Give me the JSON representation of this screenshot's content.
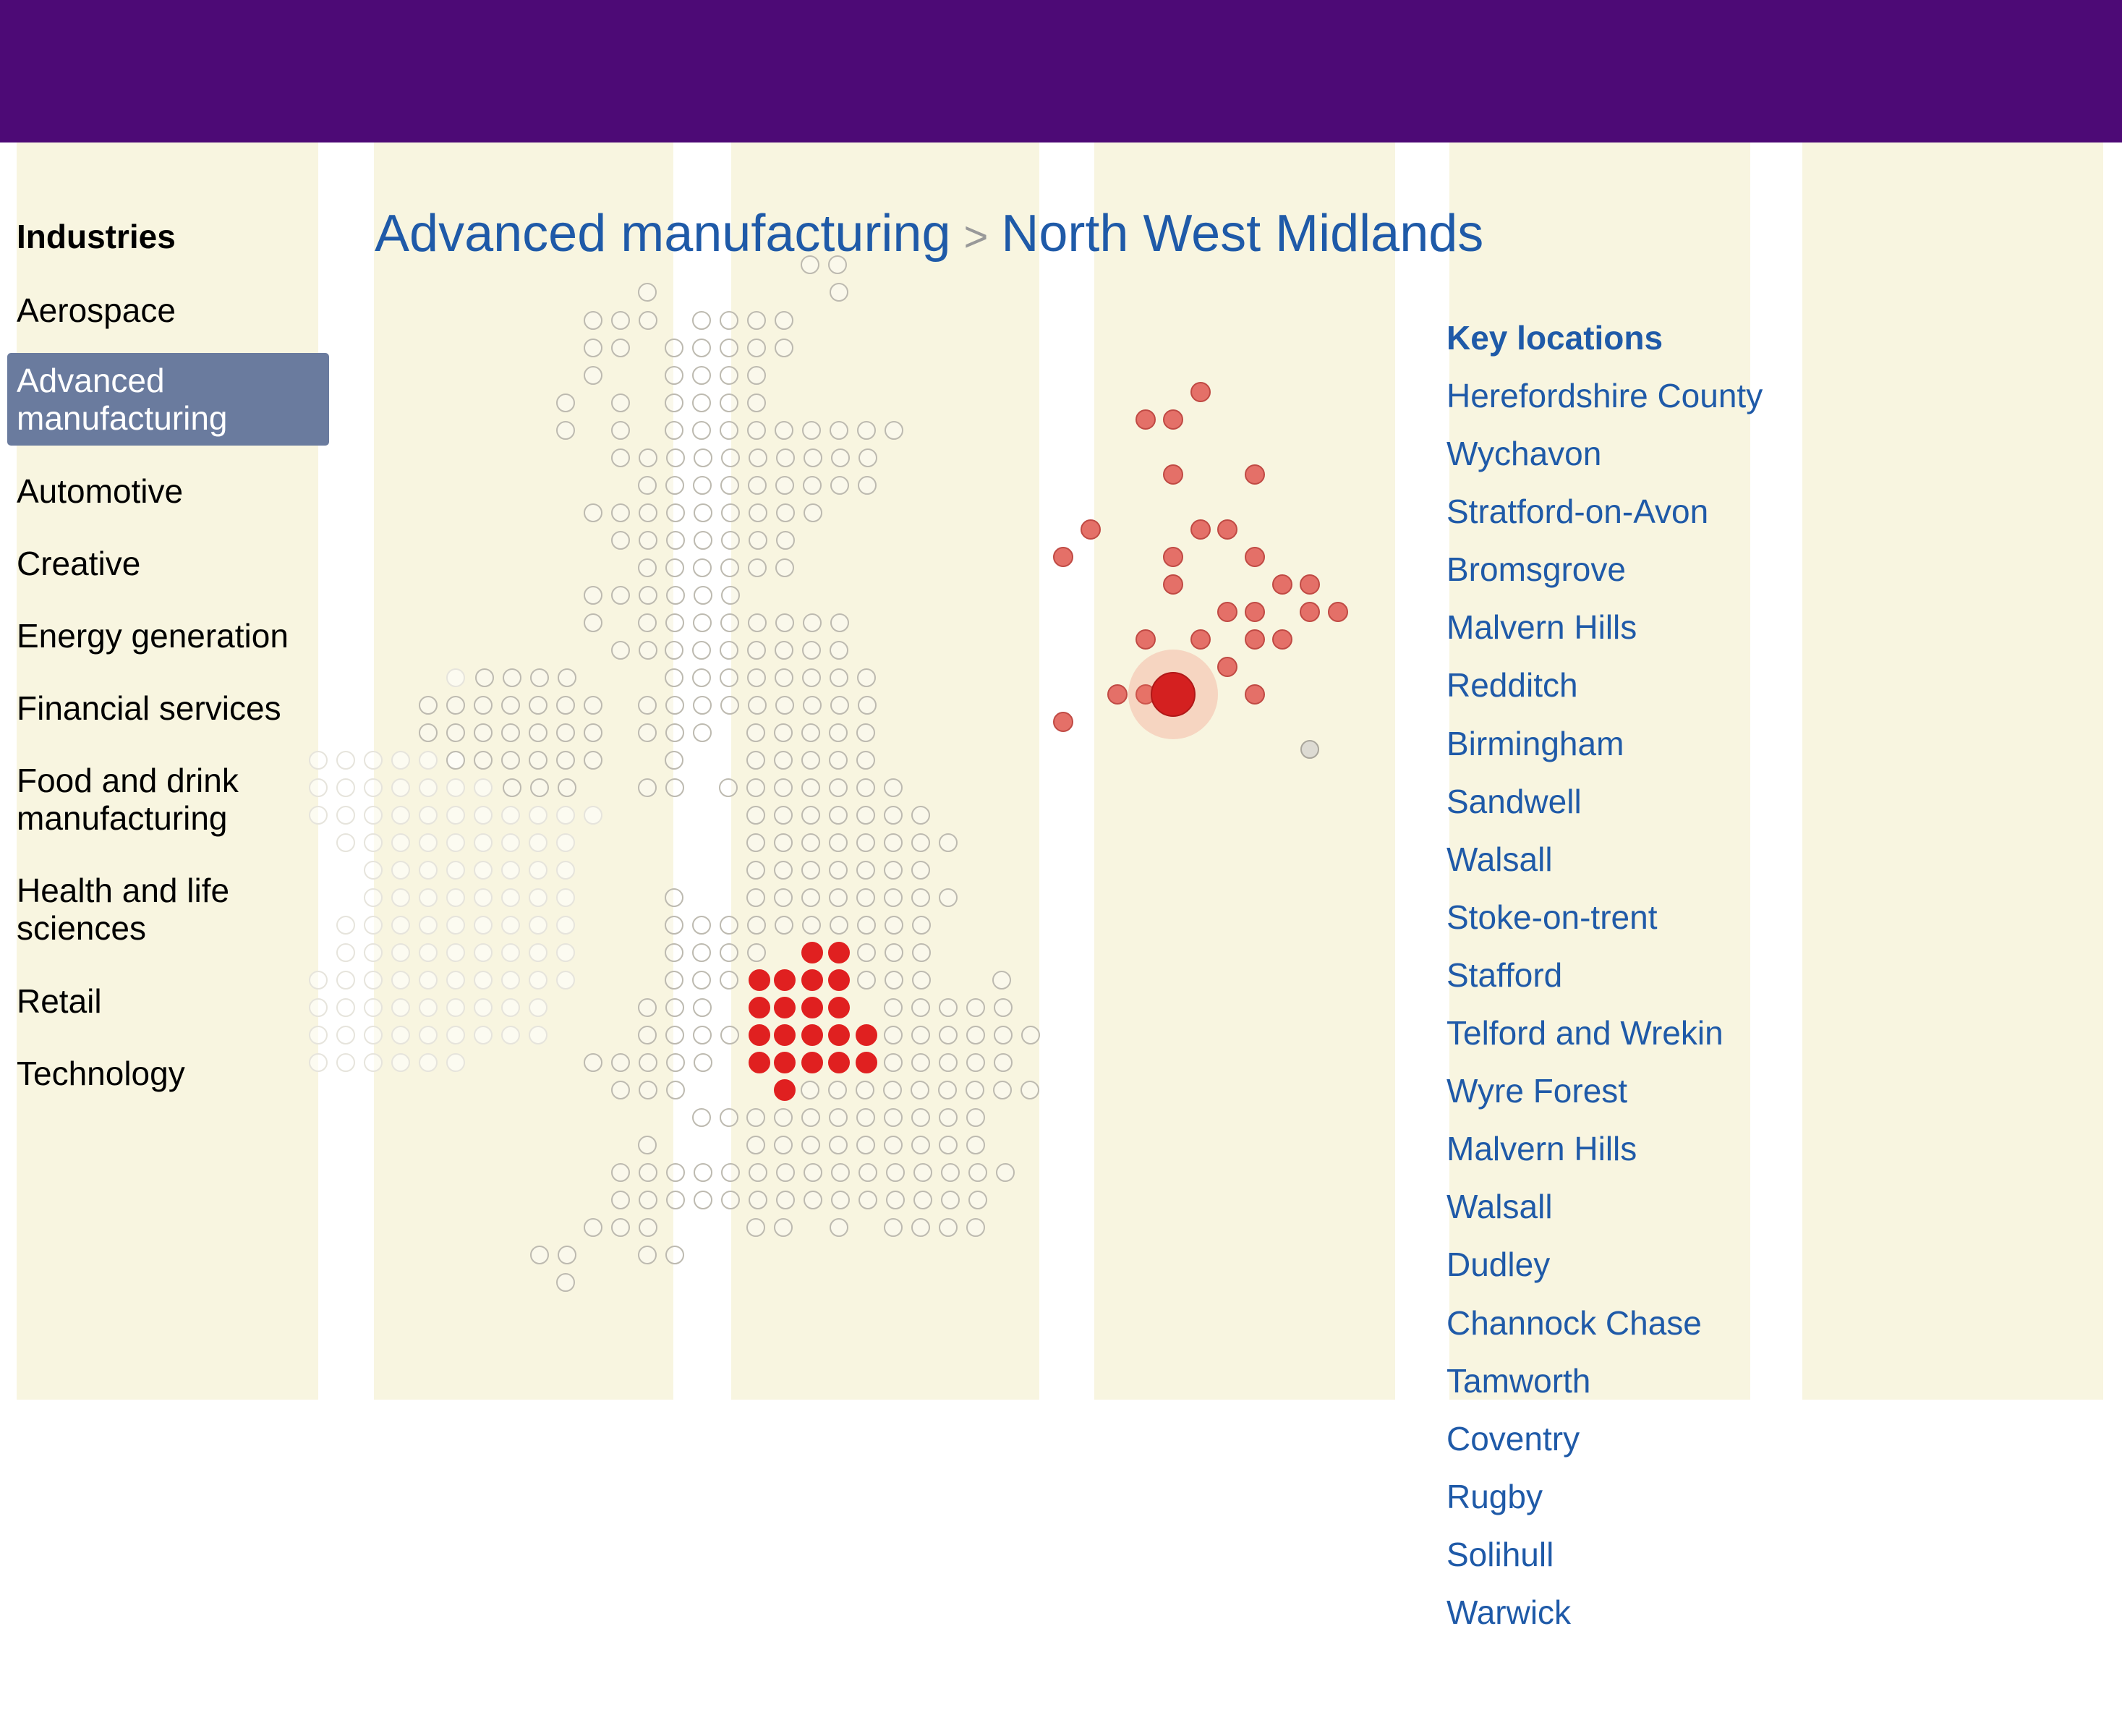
{
  "header": {
    "bar_color": "#4d0a76"
  },
  "sidebar": {
    "heading": "Industries",
    "items": [
      {
        "label": "Aerospace"
      },
      {
        "label": "Advanced manufacturing",
        "active": true
      },
      {
        "label": "Automotive"
      },
      {
        "label": "Creative"
      },
      {
        "label": "Energy generation"
      },
      {
        "label": "Financial services"
      },
      {
        "label": "Food and drink manufacturing"
      },
      {
        "label": "Health and life sciences"
      },
      {
        "label": "Retail"
      },
      {
        "label": "Technology"
      }
    ]
  },
  "title": {
    "industry": "Advanced manufacturing",
    "separator": ">",
    "region": "North West Midlands"
  },
  "key_locations": {
    "heading": "Key locations",
    "items": [
      "Herefordshire County",
      "Wychavon",
      "Stratford-on-Avon",
      "Bromsgrove",
      "Malvern Hills",
      "Redditch",
      "Birmingham",
      "Sandwell",
      "Walsall",
      "Stoke-on-trent",
      "Stafford",
      "Telford and Wrekin",
      "Wyre Forest",
      "Malvern Hills",
      "Walsall",
      "Dudley",
      "Channock Chase",
      "Tamworth",
      "Coventry",
      "Rugby",
      "Solihull",
      "Warwick"
    ]
  },
  "colors": {
    "accent": "#1f5aa8",
    "highlight_red": "#e02020",
    "column_bg": "#f8f5e0",
    "active_item_bg": "#6a7b9e"
  },
  "map": {
    "icon": "uk-dot-map",
    "detail_icon": "region-dot-map"
  }
}
